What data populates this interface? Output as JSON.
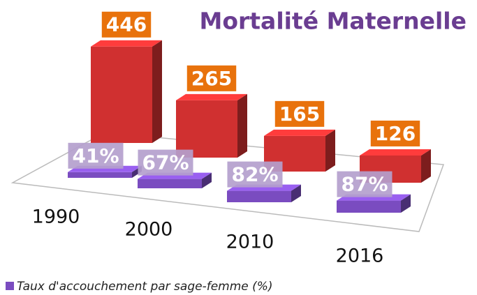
{
  "chart_data": {
    "type": "bar3d",
    "title": "Mortalité Maternelle",
    "categories": [
      "1990",
      "2000",
      "2010",
      "2016"
    ],
    "series": [
      {
        "color": "#d03030",
        "values": [
          446,
          265,
          165,
          126
        ]
      },
      {
        "name": "Taux d'accouchement par sage-femme (%)",
        "color": "#7a4cc0",
        "values": [
          41,
          67,
          82,
          87
        ],
        "value_labels": [
          "41%",
          "67%",
          "82%",
          "87%"
        ]
      }
    ]
  }
}
